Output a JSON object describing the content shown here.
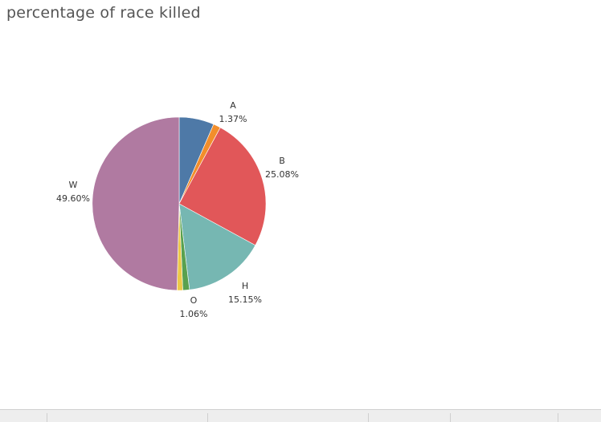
{
  "title": "percentage of race killed",
  "chart_data": {
    "type": "pie",
    "title": "percentage of race killed",
    "start_angle_deg": 0,
    "direction": "clockwise",
    "slices": [
      {
        "category": "",
        "value": 6.5,
        "color": "#4e79a7",
        "label_pct": ""
      },
      {
        "category": "A",
        "value": 1.37,
        "color": "#f28e2b",
        "label_pct": "1.37%"
      },
      {
        "category": "B",
        "value": 25.08,
        "color": "#e15759",
        "label_pct": "25.08%"
      },
      {
        "category": "H",
        "value": 15.15,
        "color": "#76b7b2",
        "label_pct": "15.15%"
      },
      {
        "category": "",
        "value": 1.24,
        "color": "#59a14f",
        "label_pct": ""
      },
      {
        "category": "O",
        "value": 1.06,
        "color": "#edc948",
        "label_pct": "1.06%"
      },
      {
        "category": "W",
        "value": 49.6,
        "color": "#b07aa1",
        "label_pct": "49.60%"
      }
    ]
  }
}
